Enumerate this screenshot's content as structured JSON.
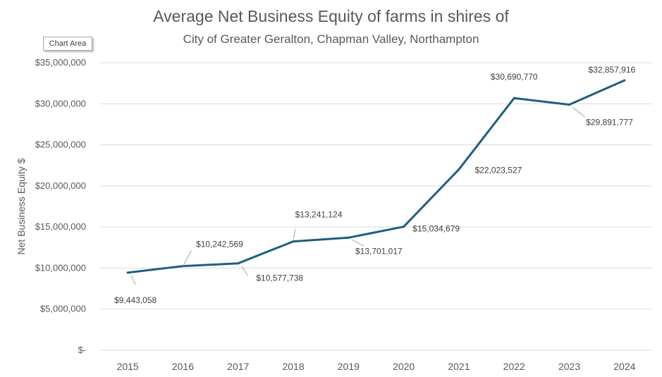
{
  "chart_data": {
    "type": "line",
    "title": "Average Net Business Equity of farms in shires of",
    "subtitle": "City of Greater Geralton, Chapman Valley, Northampton",
    "ylabel": "Net Business Equity $",
    "xlabel": "",
    "x": [
      "2015",
      "2016",
      "2017",
      "2018",
      "2019",
      "2020",
      "2021",
      "2022",
      "2023",
      "2024"
    ],
    "series": [
      {
        "values": [
          9443058,
          10242569,
          10577738,
          13241124,
          13701017,
          15034679,
          22023527,
          30690770,
          29891777,
          32857916
        ],
        "data_labels": [
          "$9,443,058",
          "$10,242,569",
          "$10,577,738",
          "$13,241,124",
          "$13,701,017",
          "$15,034,679",
          "$22,023,527",
          "$30,690,770",
          "$29,891,777",
          "$32,857,916"
        ],
        "color": "#1f5f7f"
      }
    ],
    "ylim": [
      0,
      35000000
    ],
    "yticks": [
      0,
      5000000,
      10000000,
      15000000,
      20000000,
      25000000,
      30000000,
      35000000
    ],
    "ytick_labels": [
      "$-",
      "$5,000,000",
      "$10,000,000",
      "$15,000,000",
      "$20,000,000",
      "$25,000,000",
      "$30,000,000",
      "$35,000,000"
    ],
    "grid": true,
    "legend": "none"
  },
  "tooltip": {
    "label": "Chart Area"
  },
  "colors": {
    "line": "#1f5f7f",
    "grid": "#d9d9d9",
    "text": "#595959"
  }
}
